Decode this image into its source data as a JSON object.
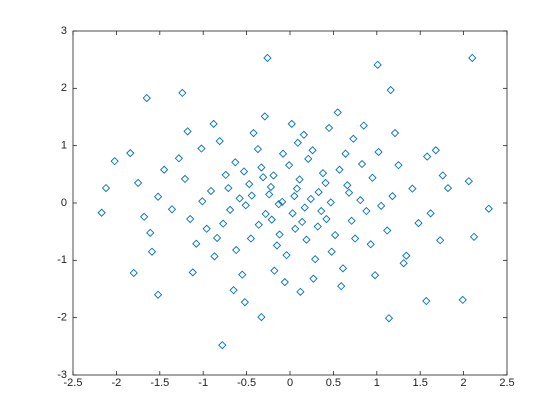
{
  "chart_data": {
    "type": "scatter",
    "marker": "diamond",
    "color": "#0072bd",
    "x": [
      -0.26,
      2.1,
      1.01,
      -1.65,
      -1.24,
      -2.17,
      -2.12,
      2.29,
      -0.78,
      -1.52,
      1.99,
      1.14,
      1.57,
      2.12,
      2.06,
      -2.02,
      -1.84,
      -1.8,
      -0.33,
      -0.52,
      1.82,
      1.68,
      1.73,
      -1.59,
      1.16,
      0.05,
      -0.31,
      0.42,
      -0.12,
      0.66,
      -0.58,
      0.21,
      -0.04,
      0.88,
      -0.77,
      0.33,
      -0.22,
      0.14,
      -0.45,
      0.57,
      -0.63,
      0.95,
      -0.91,
      0.09,
      -0.18,
      1.12,
      -1.08,
      0.48,
      -0.37,
      0.73,
      -0.81,
      1.25,
      -1.21,
      0.27,
      -0.55,
      0.61,
      1.34,
      -1.36,
      0.02,
      -0.09,
      0.17,
      -0.28,
      0.38,
      -0.47,
      0.81,
      -0.69,
      0.11,
      -0.15,
      0.52,
      -0.33,
      0.29,
      -0.87,
      1.02,
      -1.02,
      0.45,
      -0.42,
      1.41,
      -1.45,
      0.71,
      -0.74,
      0.06,
      -0.01,
      0.24,
      -0.51,
      0.93,
      -0.96,
      1.18,
      -1.15,
      0.36,
      -0.24,
      0.64,
      -0.62,
      0.19,
      -0.08,
      1.48,
      -1.52,
      0.85,
      -0.88,
      1.58,
      -1.61,
      0.12,
      -0.29,
      0.55,
      0.98,
      -1.12,
      1.31,
      -1.28,
      0.41,
      -0.36,
      0.75,
      -0.71,
      0.26,
      -0.19,
      0.03,
      -0.13,
      0.47,
      -0.44,
      0.68,
      1.05,
      -1.01,
      1.62,
      -1.68,
      0.16,
      -0.06,
      0.59,
      -0.65,
      1.21,
      -1.18,
      1.76,
      -1.75,
      0.32,
      -0.53,
      0.83,
      -0.84,
      0.08,
      -0.21
    ],
    "values": [
      2.53,
      2.53,
      2.41,
      1.83,
      1.92,
      -0.17,
      0.26,
      -0.1,
      -2.48,
      -1.6,
      -1.69,
      -2.01,
      -1.71,
      -0.59,
      0.38,
      0.73,
      0.87,
      -1.22,
      -1.99,
      -1.73,
      0.26,
      0.92,
      -0.65,
      -0.85,
      1.97,
      0.12,
      0.45,
      -0.28,
      -0.55,
      0.31,
      0.08,
      0.77,
      -0.91,
      -0.14,
      -0.36,
      0.19,
      0.28,
      -0.33,
      -0.62,
      0.58,
      0.71,
      0.44,
      0.21,
      1.05,
      -1.18,
      -0.48,
      -0.71,
      -0.85,
      0.94,
      1.12,
      1.08,
      0.66,
      0.42,
      -1.32,
      -1.25,
      -1.14,
      -0.92,
      -0.11,
      1.38,
      0.02,
      -0.08,
      -0.19,
      0.52,
      0.33,
      0.05,
      -0.12,
      0.41,
      -0.74,
      -0.56,
      0.62,
      -0.98,
      -0.93,
      0.89,
      0.95,
      1.31,
      1.22,
      0.25,
      0.58,
      -0.31,
      0.49,
      -0.45,
      0.66,
      0.07,
      -0.04,
      -0.72,
      -0.45,
      0.12,
      -0.28,
      -0.14,
      0.15,
      0.86,
      -0.82,
      -0.64,
      0.86,
      -0.35,
      0.11,
      1.35,
      1.38,
      0.81,
      -0.52,
      -1.55,
      1.51,
      1.58,
      -1.26,
      -1.21,
      -1.05,
      0.78,
      0.35,
      -0.38,
      -0.62,
      0.26,
      0.92,
      0.48,
      -0.18,
      -0.02,
      0.01,
      0.13,
      0.18,
      -0.05,
      0.03,
      -0.18,
      -0.24,
      1.19,
      -1.38,
      -1.45,
      -1.52,
      1.22,
      1.25,
      0.48,
      0.35,
      -0.41,
      0.55,
      0.68,
      -0.61,
      0.25,
      -0.29
    ],
    "xlim": [
      -2.5,
      2.5
    ],
    "ylim": [
      -3,
      3
    ],
    "xticks": [
      -2.5,
      -2,
      -1.5,
      -1,
      -0.5,
      0,
      0.5,
      1,
      1.5,
      2,
      2.5
    ],
    "yticks": [
      -3,
      -2,
      -1,
      0,
      1,
      2,
      3
    ]
  }
}
